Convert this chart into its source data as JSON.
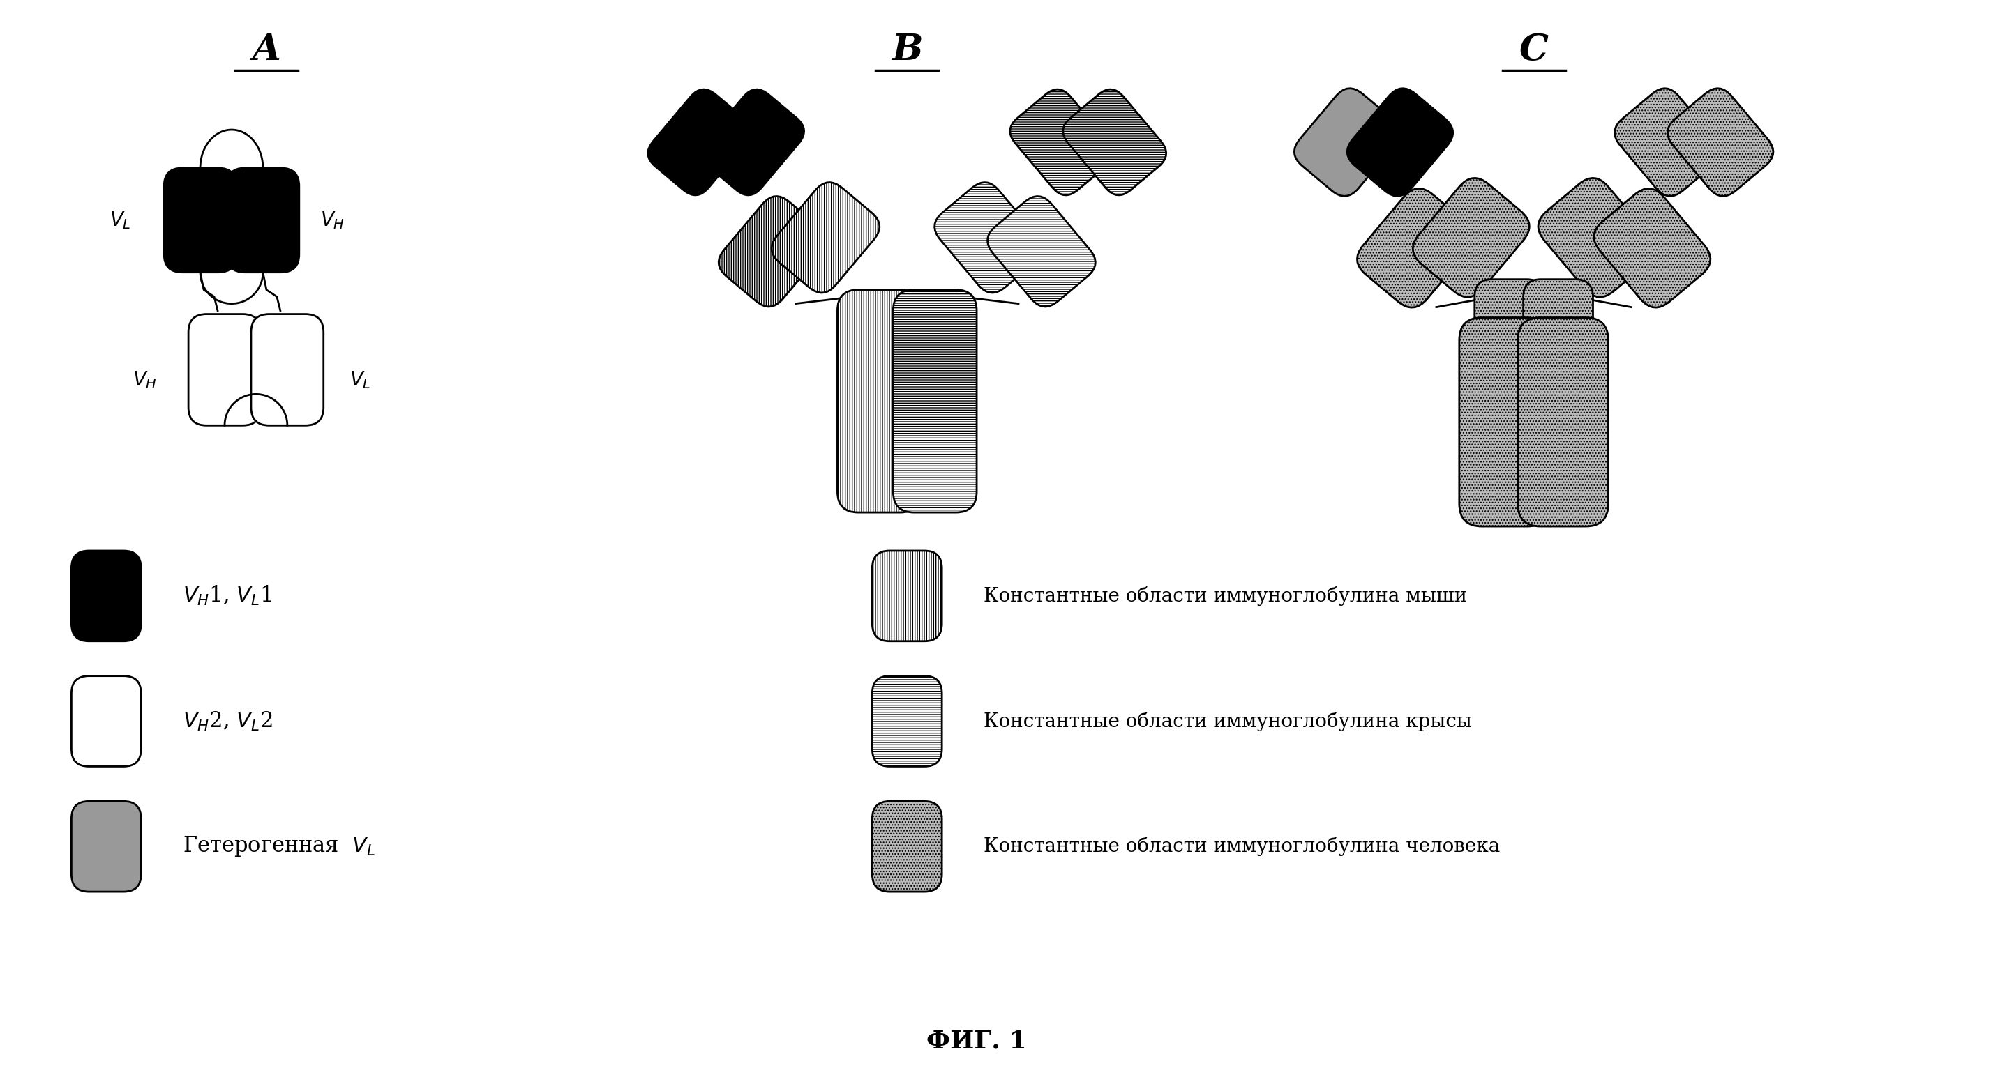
{
  "fig_width": 28.77,
  "fig_height": 15.55,
  "bg_color": "#ffffff",
  "title_A": "A",
  "title_B": "B",
  "title_C": "C",
  "fig_label": "ФИГ. 1",
  "leg1_label": "V_H1, V_L1",
  "leg2_label": "V_H2, V_L2",
  "leg3_label": "Гетерогенная  V_L",
  "leg4_label": "Константные области иммуноглобулина мыши",
  "leg5_label": "Константные области иммуноглобулина крысы",
  "leg6_label": "Константные области иммуноглобулина человека"
}
